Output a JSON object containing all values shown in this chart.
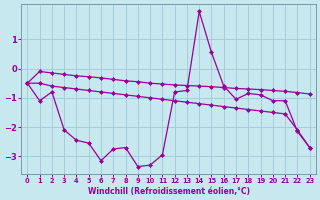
{
  "xlabel": "Windchill (Refroidissement éolien,°C)",
  "bg_color": "#c8e8f0",
  "line_color": "#990099",
  "grid_color": "#a0c8d8",
  "xlim_min": -0.5,
  "xlim_max": 23.5,
  "ylim_min": -3.6,
  "ylim_max": 2.2,
  "yticks": [
    -3,
    -2,
    -1,
    0,
    1
  ],
  "xticks": [
    0,
    1,
    2,
    3,
    4,
    5,
    6,
    7,
    8,
    9,
    10,
    11,
    12,
    13,
    14,
    15,
    16,
    17,
    18,
    19,
    20,
    21,
    22,
    23
  ],
  "line1_y": [
    -0.5,
    -1.1,
    -0.8,
    -2.1,
    -2.45,
    -2.55,
    -3.15,
    -2.75,
    -2.7,
    -3.35,
    -3.3,
    -2.95,
    -0.8,
    -0.75,
    1.95,
    0.55,
    -0.6,
    -1.05,
    -0.85,
    -0.9,
    -1.1,
    -1.1,
    -2.15,
    -2.7
  ],
  "line2_y": [
    -0.5,
    -0.5,
    -0.6,
    -0.65,
    -0.7,
    -0.75,
    -0.8,
    -0.85,
    -0.9,
    -0.95,
    -1.0,
    -1.05,
    -1.1,
    -1.15,
    -1.2,
    -1.25,
    -1.3,
    -1.35,
    -1.4,
    -1.45,
    -1.5,
    -1.55,
    -2.1,
    -2.7
  ],
  "line3_y": [
    -0.5,
    -0.1,
    -0.15,
    -0.2,
    -0.25,
    -0.28,
    -0.32,
    -0.37,
    -0.42,
    -0.45,
    -0.5,
    -0.53,
    -0.56,
    -0.58,
    -0.6,
    -0.62,
    -0.65,
    -0.68,
    -0.7,
    -0.72,
    -0.75,
    -0.78,
    -0.82,
    -0.87
  ]
}
